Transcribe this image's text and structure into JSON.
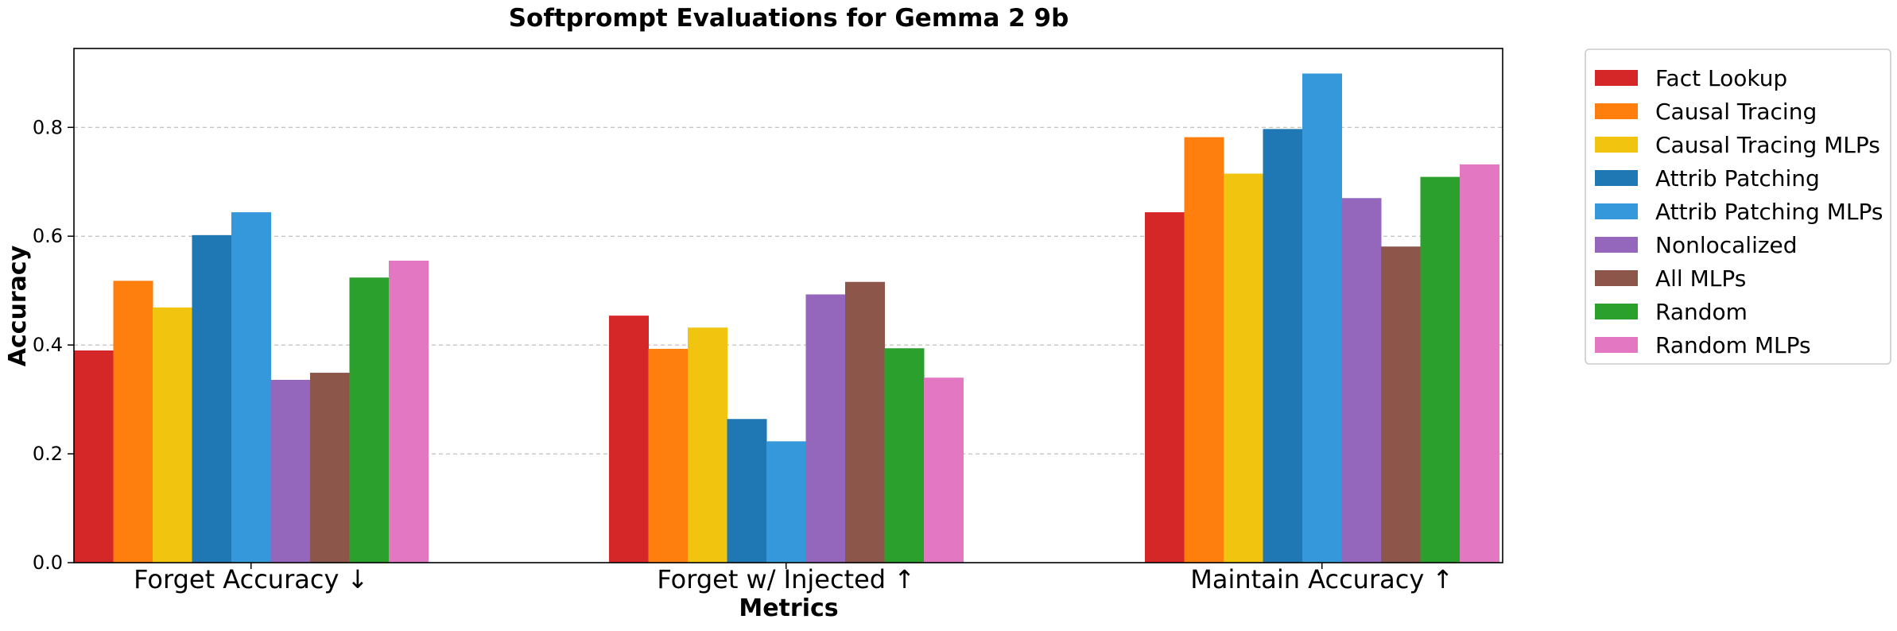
{
  "chart_data": {
    "type": "bar",
    "title": "Softprompt Evaluations for Gemma 2 9b",
    "xlabel": "Metrics",
    "ylabel": "Accuracy",
    "categories": [
      "Forget Accuracy ↓",
      "Forget w/ Injected ↑",
      "Maintain Accuracy ↑"
    ],
    "ylim": [
      0,
      0.945
    ],
    "yticks": [
      "0.0",
      "0.2",
      "0.4",
      "0.6",
      "0.8"
    ],
    "ytick_values": [
      0,
      0.2,
      0.4,
      0.6,
      0.8
    ],
    "grid": "y-dashed",
    "legend_position": "outside-right",
    "series": [
      {
        "name": "Fact Lookup",
        "color": "#d62728",
        "values": [
          0.39,
          0.454,
          0.644
        ]
      },
      {
        "name": "Causal Tracing",
        "color": "#ff7f0e",
        "values": [
          0.518,
          0.393,
          0.782
        ]
      },
      {
        "name": "Causal Tracing MLPs",
        "color": "#f1c40f",
        "values": [
          0.469,
          0.432,
          0.715
        ]
      },
      {
        "name": "Attrib Patching",
        "color": "#1f77b4",
        "values": [
          0.602,
          0.264,
          0.797
        ]
      },
      {
        "name": "Attrib Patching MLPs",
        "color": "#3498db",
        "values": [
          0.644,
          0.223,
          0.899
        ]
      },
      {
        "name": "Nonlocalized",
        "color": "#9467bd",
        "values": [
          0.336,
          0.493,
          0.67
        ]
      },
      {
        "name": "All MLPs",
        "color": "#8c564b",
        "values": [
          0.349,
          0.516,
          0.581
        ]
      },
      {
        "name": "Random",
        "color": "#2ca02c",
        "values": [
          0.524,
          0.394,
          0.709
        ]
      },
      {
        "name": "Random MLPs",
        "color": "#e377c2",
        "values": [
          0.555,
          0.34,
          0.732
        ]
      }
    ]
  }
}
